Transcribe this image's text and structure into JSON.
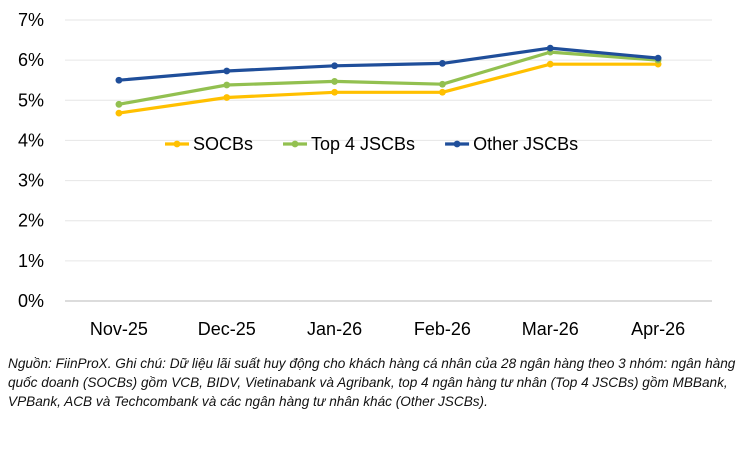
{
  "chart_data": {
    "type": "line",
    "categories": [
      "Nov-25",
      "Dec-25",
      "Jan-26",
      "Feb-26",
      "Mar-26",
      "Apr-26"
    ],
    "series": [
      {
        "name": "SOCBs",
        "color": "#FFC000",
        "values": [
          4.68,
          5.07,
          5.2,
          5.2,
          5.9,
          5.9
        ]
      },
      {
        "name": "Top 4 JSCBs",
        "color": "#92C050",
        "values": [
          4.9,
          5.38,
          5.47,
          5.4,
          6.2,
          6.0
        ]
      },
      {
        "name": "Other JSCBs",
        "color": "#1F4E9A",
        "values": [
          5.5,
          5.73,
          5.86,
          5.92,
          6.3,
          6.05
        ]
      }
    ],
    "yticks": [
      "0%",
      "1%",
      "2%",
      "3%",
      "4%",
      "5%",
      "6%",
      "7%"
    ],
    "ylim": [
      0,
      7
    ],
    "ytick_step": 1,
    "grid": true,
    "legend_position": "inside-middle",
    "title": "",
    "xlabel": "",
    "ylabel": ""
  },
  "note": "Nguồn: FiinProX. Ghi chú: Dữ liệu lãi suất huy động cho khách hàng cá nhân của 28 ngân hàng theo 3 nhóm: ngân hàng quốc doanh (SOCBs) gồm VCB, BIDV, Vietinabank và Agribank, top 4 ngân hàng tư nhân (Top 4 JSCBs) gồm MBBank, VPBank, ACB và Techcombank và các ngân hàng tư nhân khác (Other JSCBs)."
}
